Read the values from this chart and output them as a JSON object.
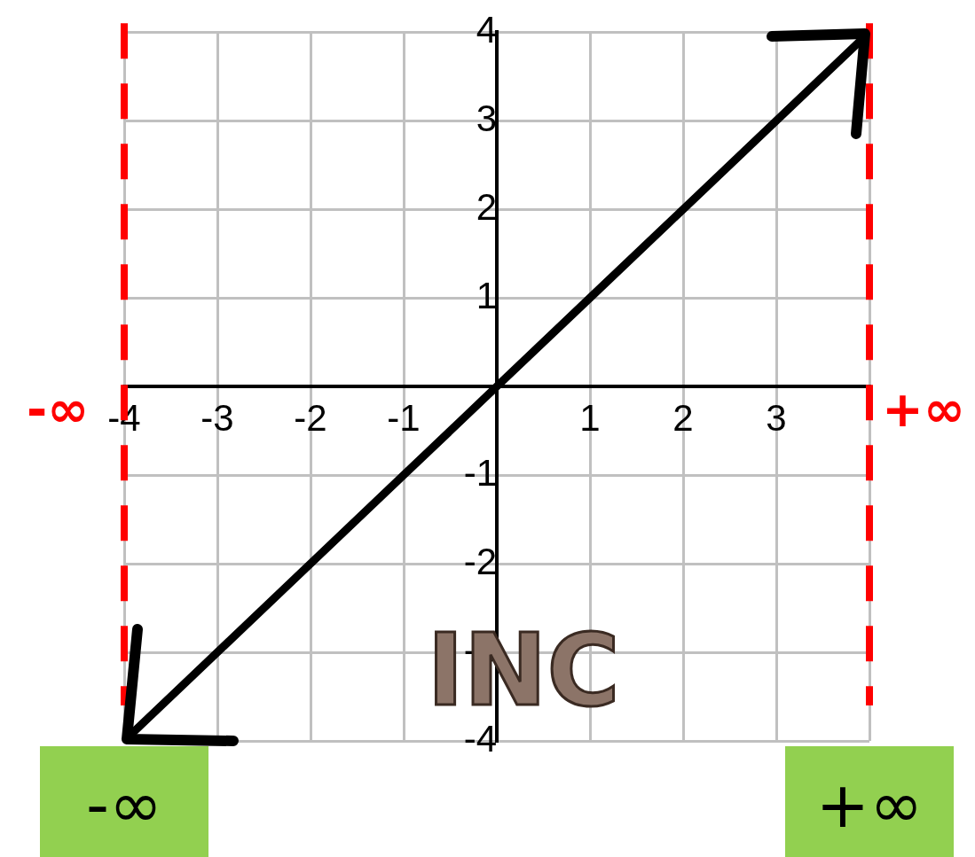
{
  "chart_data": {
    "type": "line",
    "x": [
      -4,
      -3,
      -2,
      -1,
      0,
      1,
      2,
      3,
      4
    ],
    "series": [
      {
        "color": "#000000",
        "values": [
          -4,
          -3,
          -2,
          -1,
          0,
          1,
          2,
          3,
          4
        ]
      }
    ],
    "xlim": [
      -4,
      4
    ],
    "ylim": [
      -4,
      4
    ],
    "xticks": [
      -4,
      -3,
      -2,
      -1,
      {
        "value": 0,
        "label": null
      },
      1,
      2,
      3,
      {
        "value": 4,
        "label": null
      }
    ],
    "yticks": [
      -4,
      -3,
      -2,
      -1,
      {
        "value": 0,
        "label": null
      },
      1,
      2,
      3,
      4
    ],
    "grid": true,
    "legend": false,
    "marker": "none",
    "ref_lines": [
      {
        "axis": "x",
        "value": -4,
        "label": "-∞",
        "color": "#ff0000",
        "line_style": "dashed"
      },
      {
        "axis": "x",
        "value": 4,
        "label": "+∞",
        "color": "#ff0000",
        "line_style": "dashed"
      }
    ],
    "annotations": [
      "INC",
      "-∞",
      "+∞"
    ]
  }
}
